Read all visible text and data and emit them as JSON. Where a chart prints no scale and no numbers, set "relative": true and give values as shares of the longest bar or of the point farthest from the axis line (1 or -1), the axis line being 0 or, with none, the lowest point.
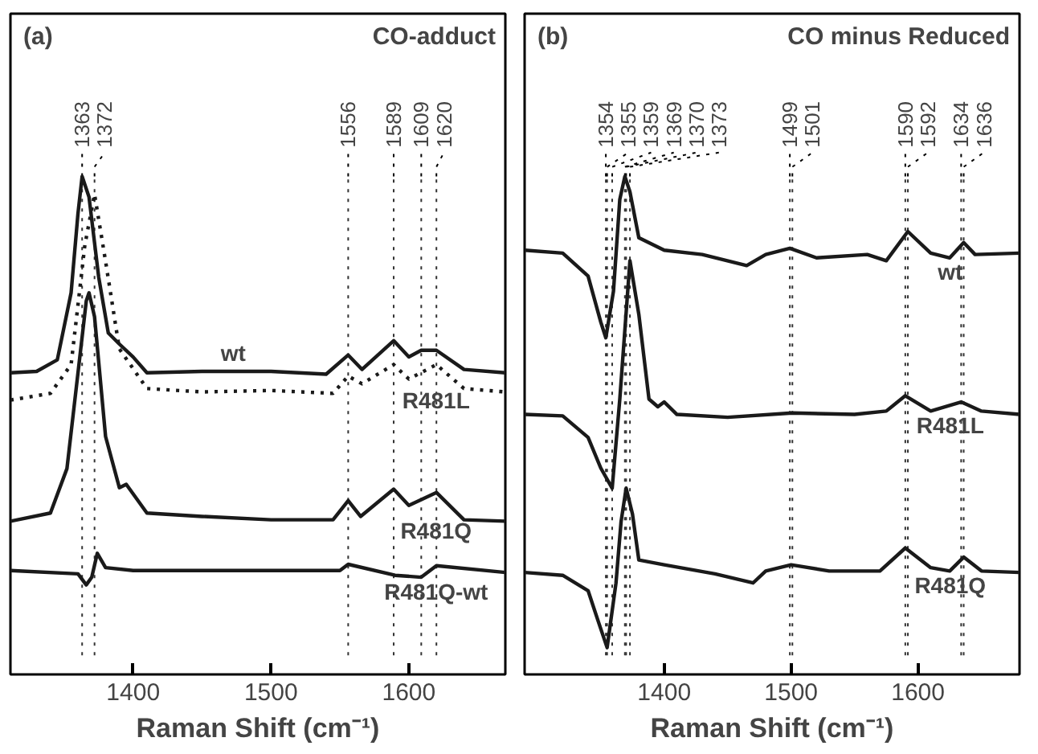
{
  "chart_data": [
    {
      "type": "line",
      "title": "CO-adduct",
      "annotations": [
        "(a)"
      ],
      "xlabel": "Raman Shift (cm⁻¹)",
      "relative": true,
      "xlim": [
        1311,
        1670
      ],
      "xticks": [
        1400,
        1500,
        1600
      ],
      "grid": false,
      "tick_labels": "x",
      "ref_lines": [
        {
          "axis": "x",
          "value": 1363,
          "label": "1363",
          "line_style": "dotted"
        },
        {
          "axis": "x",
          "value": 1372,
          "label": "1372",
          "line_style": "dotted"
        },
        {
          "axis": "x",
          "value": 1556,
          "label": "1556",
          "line_style": "dotted"
        },
        {
          "axis": "x",
          "value": 1589,
          "label": "1589",
          "line_style": "dotted"
        },
        {
          "axis": "x",
          "value": 1609,
          "label": "1609",
          "line_style": "dotted"
        },
        {
          "axis": "x",
          "value": 1620,
          "label": "1620",
          "line_style": "dotted"
        }
      ],
      "series": [
        {
          "name": "wt",
          "color": "#1a1a1a",
          "line_style": "solid",
          "x": [
            1311,
            1330,
            1345,
            1355,
            1360,
            1363,
            1368,
            1375,
            1382,
            1390,
            1400,
            1410,
            1450,
            1500,
            1540,
            1556,
            1566,
            1589,
            1600,
            1609,
            1620,
            1640,
            1670
          ],
          "values": [
            0.59,
            0.593,
            0.617,
            0.757,
            0.923,
            1.0,
            0.957,
            0.79,
            0.673,
            0.65,
            0.623,
            0.59,
            0.593,
            0.593,
            0.587,
            0.627,
            0.597,
            0.657,
            0.623,
            0.637,
            0.637,
            0.597,
            0.59
          ]
        },
        {
          "name": "R481L",
          "color": "#1a1a1a",
          "line_style": "dotted",
          "x": [
            1311,
            1340,
            1355,
            1365,
            1372,
            1380,
            1390,
            1410,
            1450,
            1500,
            1545,
            1556,
            1566,
            1589,
            1600,
            1620,
            1640,
            1670
          ],
          "values": [
            0.533,
            0.547,
            0.607,
            0.857,
            0.963,
            0.823,
            0.64,
            0.557,
            0.55,
            0.553,
            0.547,
            0.583,
            0.567,
            0.607,
            0.577,
            0.607,
            0.557,
            0.55
          ]
        },
        {
          "name": "R481Q",
          "color": "#1a1a1a",
          "line_style": "solid",
          "x": [
            1311,
            1340,
            1352,
            1360,
            1366,
            1368,
            1372,
            1380,
            1390,
            1395,
            1410,
            1450,
            1500,
            1545,
            1556,
            1565,
            1589,
            1600,
            1620,
            1640,
            1670
          ],
          "values": [
            0.28,
            0.297,
            0.39,
            0.59,
            0.74,
            0.757,
            0.707,
            0.457,
            0.35,
            0.357,
            0.297,
            0.29,
            0.283,
            0.283,
            0.323,
            0.29,
            0.347,
            0.313,
            0.34,
            0.283,
            0.28
          ]
        },
        {
          "name": "R481Q-wt",
          "color": "#1a1a1a",
          "line_style": "solid",
          "x": [
            1311,
            1360,
            1366,
            1370,
            1374,
            1380,
            1400,
            1550,
            1556,
            1590,
            1609,
            1620,
            1670
          ],
          "values": [
            0.177,
            0.17,
            0.147,
            0.163,
            0.213,
            0.183,
            0.177,
            0.177,
            0.19,
            0.167,
            0.163,
            0.187,
            0.173
          ]
        }
      ]
    },
    {
      "type": "line",
      "title": "CO minus Reduced",
      "annotations": [
        "(b)"
      ],
      "xlabel": "Raman Shift (cm⁻¹)",
      "relative": true,
      "xlim": [
        1290,
        1680
      ],
      "xticks": [
        1400,
        1500,
        1600
      ],
      "grid": false,
      "tick_labels": "x",
      "ref_lines": [
        {
          "axis": "x",
          "value": 1354,
          "label": "1354",
          "line_style": "dotted"
        },
        {
          "axis": "x",
          "value": 1359,
          "label": "1359",
          "line_style": "dotted"
        },
        {
          "axis": "x",
          "value": 1369,
          "label": "1369",
          "line_style": "dotted"
        },
        {
          "axis": "x",
          "value": 1373,
          "label": "1373",
          "line_style": "dotted"
        },
        {
          "axis": "x",
          "value": 1499,
          "label": "1499",
          "line_style": "dotted"
        },
        {
          "axis": "x",
          "value": 1592,
          "label": "1592",
          "line_style": "dotted"
        },
        {
          "axis": "x",
          "value": 1636,
          "label": "1636",
          "line_style": "dotted"
        },
        {
          "axis": "x",
          "value": 1501,
          "label": "1501",
          "line_style": "dotted"
        },
        {
          "axis": "x",
          "value": 1590,
          "label": "1590",
          "line_style": "dotted"
        },
        {
          "axis": "x",
          "value": 1634,
          "label": "1634",
          "line_style": "dotted"
        },
        {
          "axis": "x",
          "value": 1355,
          "label": "1355",
          "line_style": "dotted"
        },
        {
          "axis": "x",
          "value": 1370,
          "label": "1370",
          "line_style": "dotted"
        }
      ],
      "series": [
        {
          "name": "wt",
          "color": "#1a1a1a",
          "line_style": "solid",
          "x": [
            1290,
            1320,
            1340,
            1350,
            1354,
            1360,
            1365,
            1369,
            1373,
            1380,
            1400,
            1430,
            1465,
            1480,
            1499,
            1520,
            1560,
            1575,
            1592,
            1610,
            1625,
            1636,
            1645,
            1680
          ],
          "values": [
            0.846,
            0.84,
            0.792,
            0.696,
            0.663,
            0.76,
            0.952,
            1.0,
            0.968,
            0.872,
            0.846,
            0.837,
            0.814,
            0.837,
            0.85,
            0.83,
            0.837,
            0.824,
            0.885,
            0.84,
            0.83,
            0.862,
            0.837,
            0.84
          ]
        },
        {
          "name": "R481L",
          "color": "#1a1a1a",
          "line_style": "solid",
          "x": [
            1290,
            1320,
            1340,
            1350,
            1359,
            1365,
            1373,
            1380,
            1388,
            1395,
            1400,
            1410,
            1450,
            1501,
            1550,
            1575,
            1590,
            1610,
            1634,
            1650,
            1680
          ],
          "values": [
            0.503,
            0.5,
            0.455,
            0.391,
            0.349,
            0.535,
            0.824,
            0.712,
            0.535,
            0.519,
            0.529,
            0.503,
            0.497,
            0.506,
            0.503,
            0.51,
            0.542,
            0.51,
            0.529,
            0.51,
            0.503
          ]
        },
        {
          "name": "R481Q",
          "color": "#1a1a1a",
          "line_style": "solid",
          "x": [
            1290,
            1320,
            1340,
            1348,
            1355,
            1362,
            1366,
            1370,
            1375,
            1380,
            1400,
            1440,
            1470,
            1480,
            1500,
            1530,
            1570,
            1590,
            1610,
            1625,
            1636,
            1650,
            1680
          ],
          "values": [
            0.173,
            0.167,
            0.135,
            0.071,
            0.016,
            0.151,
            0.279,
            0.349,
            0.295,
            0.199,
            0.189,
            0.17,
            0.151,
            0.176,
            0.189,
            0.176,
            0.176,
            0.224,
            0.183,
            0.176,
            0.205,
            0.176,
            0.173
          ]
        }
      ]
    }
  ]
}
